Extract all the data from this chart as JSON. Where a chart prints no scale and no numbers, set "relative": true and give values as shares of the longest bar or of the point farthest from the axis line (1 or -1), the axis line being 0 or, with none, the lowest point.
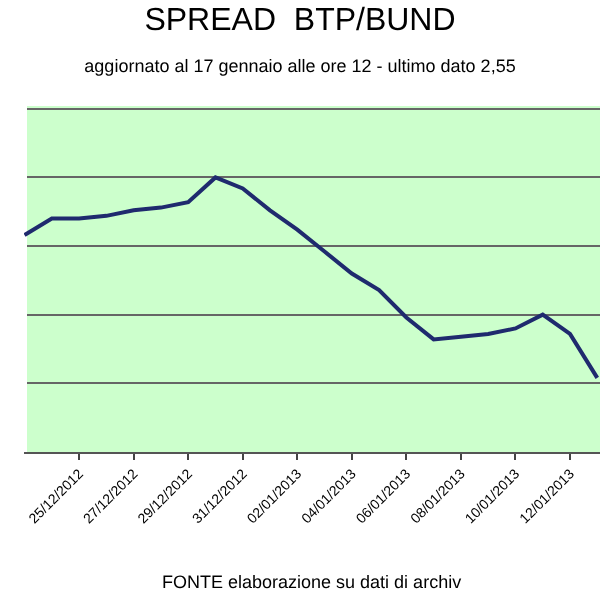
{
  "chart_data": {
    "type": "line",
    "title": "SPREAD  BTP/BUND",
    "subtitle": "aggiornato al 17 gennaio alle ore 12 - ultimo dato 2,55",
    "categories": [
      null,
      null,
      "25/12/2012",
      null,
      "27/12/2012",
      null,
      "29/12/2012",
      null,
      "31/12/2012",
      null,
      "02/01/2013",
      null,
      "04/01/2013",
      null,
      "06/01/2013",
      null,
      "08/01/2013",
      null,
      "10/01/2013",
      null,
      "12/01/2013",
      null
    ],
    "relative": true,
    "series": [
      {
        "color": "#1f2a6e",
        "values": [
          0.79,
          0.85,
          0.85,
          0.86,
          0.88,
          0.89,
          0.91,
          1.0,
          0.96,
          0.88,
          0.81,
          0.73,
          0.65,
          0.59,
          0.49,
          0.41,
          0.42,
          0.43,
          0.45,
          0.5,
          0.43,
          0.27
        ]
      }
    ],
    "annotations": [
      "FONTE elaborazione su dati di archiv"
    ],
    "grid": "y",
    "marker": "none",
    "line_style": "solid"
  }
}
